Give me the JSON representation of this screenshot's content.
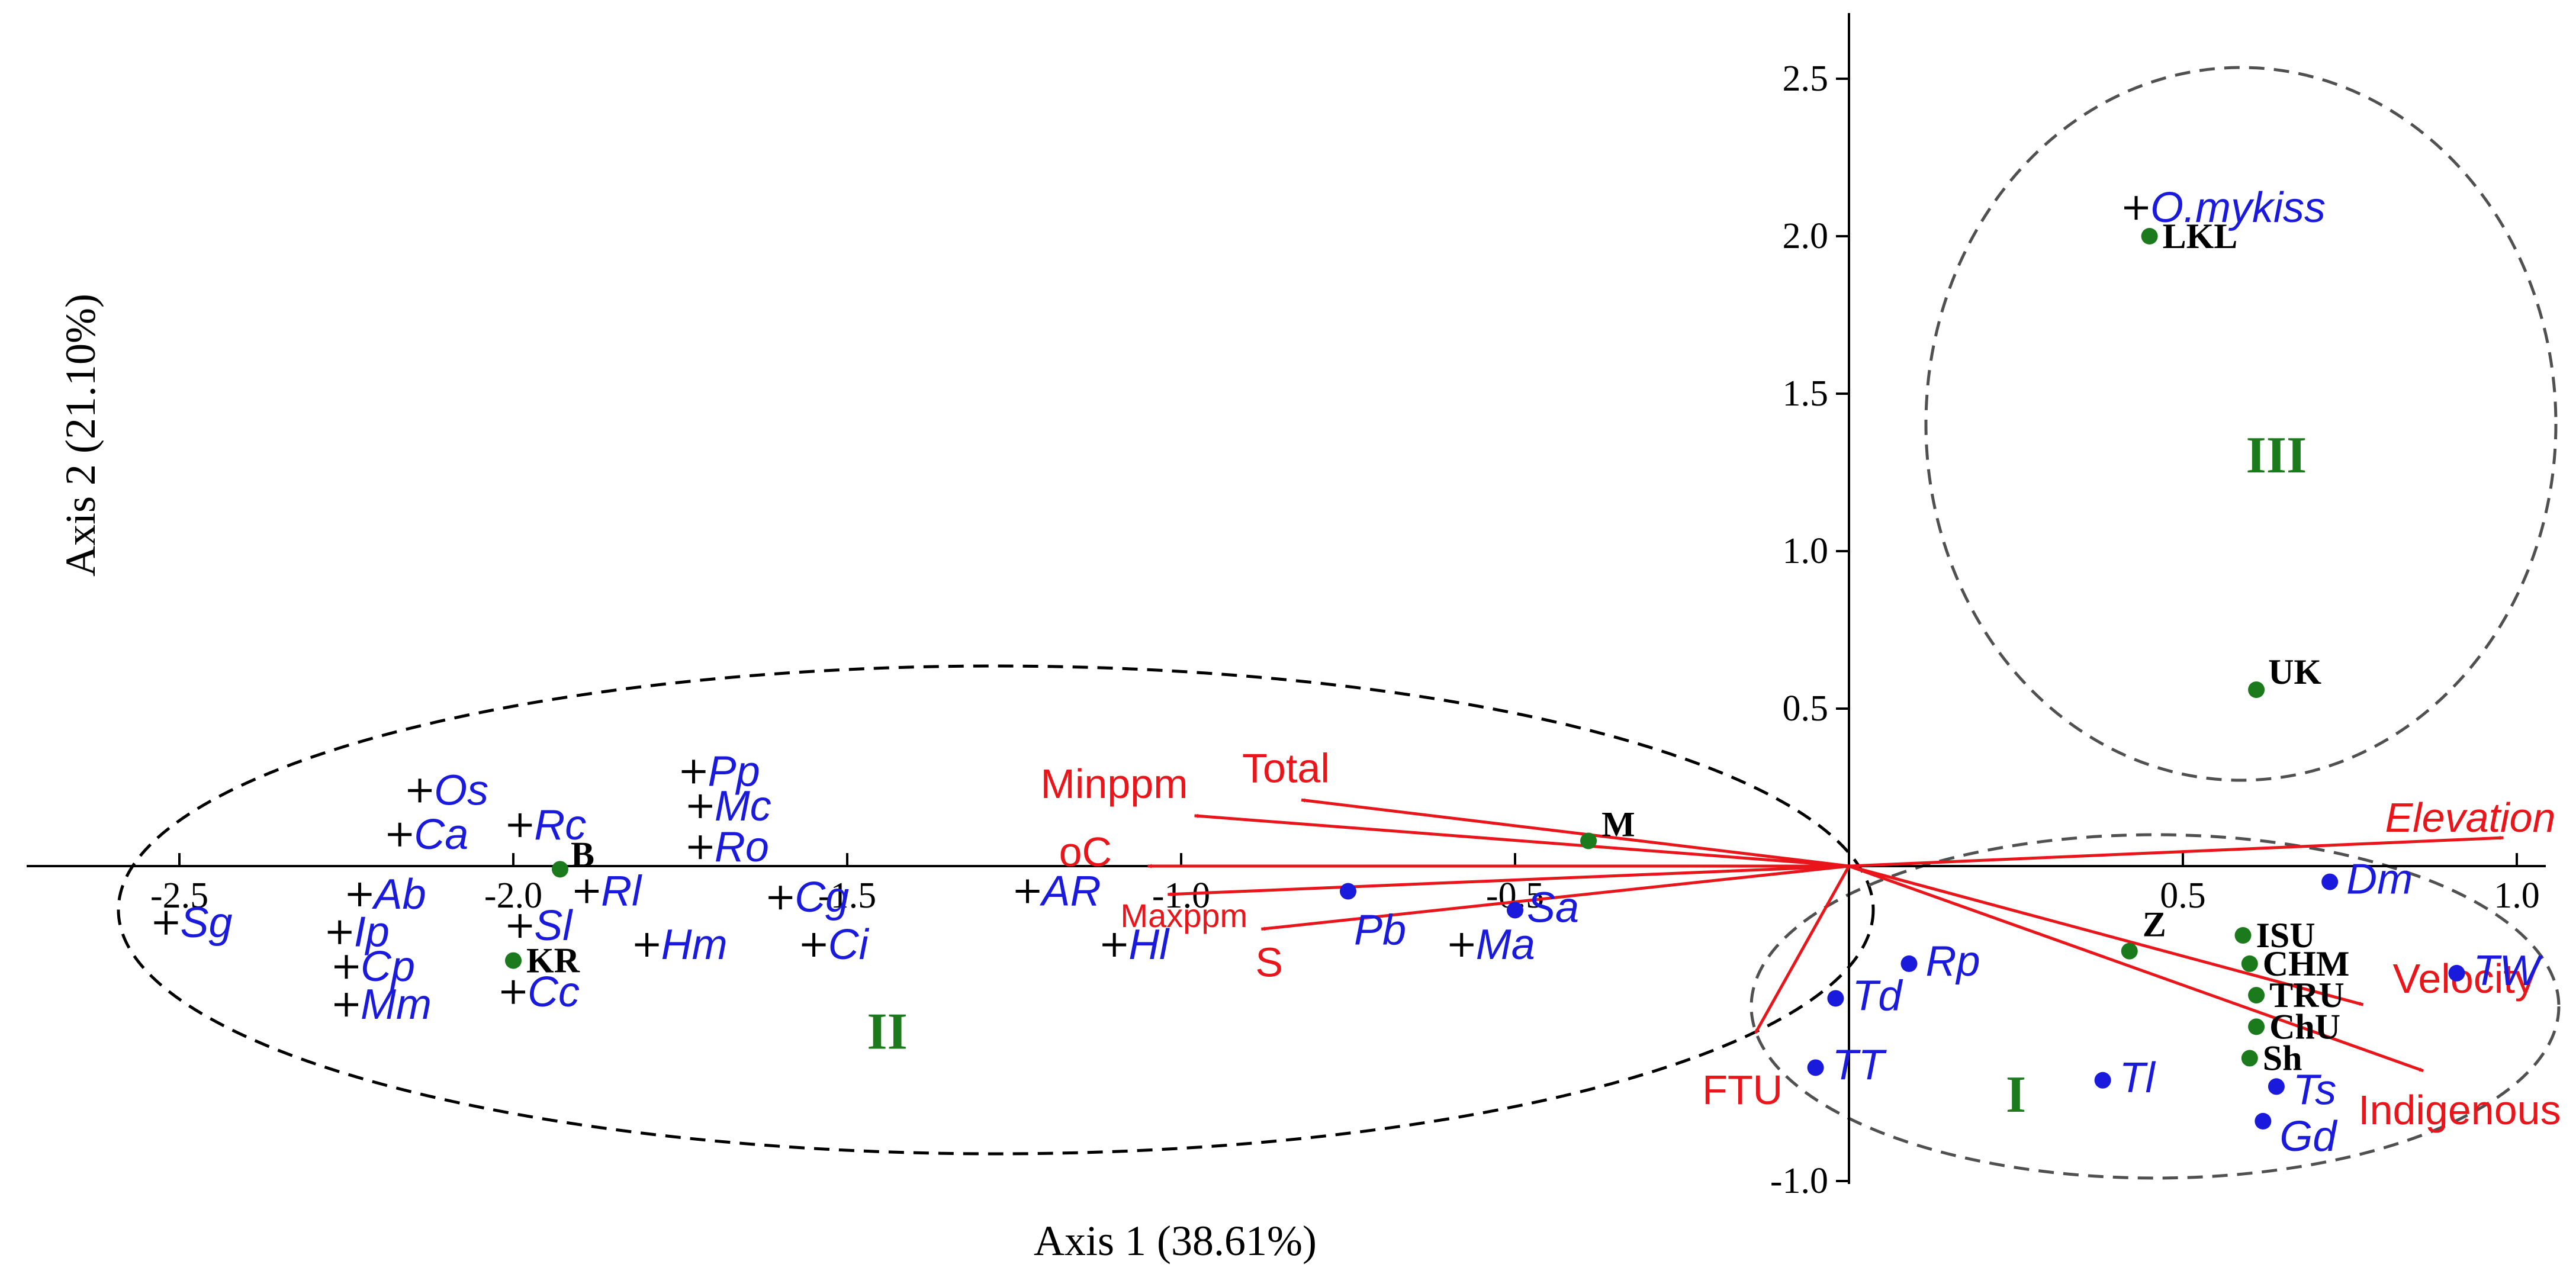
{
  "chart_data": {
    "type": "scatter",
    "subtype": "ordination biplot",
    "xlabel": "Axis 1 (38.61%)",
    "ylabel": "Axis 2 (21.10%)",
    "xlim": [
      -2.6,
      1.0
    ],
    "ylim": [
      -1.0,
      2.6
    ],
    "x_ticks": [
      "-2.5",
      "-2.0",
      "-1.5",
      "-1.0",
      "-0.5",
      "0.5",
      "1.0"
    ],
    "x_tick_values": [
      -2.5,
      -2.0,
      -1.5,
      -1.0,
      -0.5,
      0.5,
      1.0
    ],
    "y_ticks": [
      "2.5",
      "2.0",
      "1.5",
      "1.0",
      "0.5",
      "-1.0"
    ],
    "y_tick_values": [
      2.5,
      2.0,
      1.5,
      1.0,
      0.5,
      -1.0
    ],
    "grid": false,
    "colors": {
      "species_nonnative": "#1a1adc",
      "species_native": "#1a1adc",
      "sites": "#1b7a1b",
      "vectors": "#e8151b",
      "groups": "#1b7a1b",
      "ellipse": "#000000",
      "circle": "#505050"
    },
    "species_cross": [
      {
        "label": "Sg",
        "x": -2.52,
        "y": -0.18
      },
      {
        "label": "Ab",
        "x": -2.23,
        "y": -0.09
      },
      {
        "label": "Ip",
        "x": -2.26,
        "y": -0.21
      },
      {
        "label": "Cp",
        "x": -2.25,
        "y": -0.32
      },
      {
        "label": "Mm",
        "x": -2.25,
        "y": -0.44
      },
      {
        "label": "Os",
        "x": -2.14,
        "y": 0.24
      },
      {
        "label": "Ca",
        "x": -2.17,
        "y": 0.1
      },
      {
        "label": "Rc",
        "x": -1.99,
        "y": 0.13
      },
      {
        "label": "Sl",
        "x": -1.99,
        "y": -0.19
      },
      {
        "label": "Cc",
        "x": -2.0,
        "y": -0.4
      },
      {
        "label": "Rl",
        "x": -1.89,
        "y": -0.08
      },
      {
        "label": "Pp",
        "x": -1.73,
        "y": 0.3
      },
      {
        "label": "Mc",
        "x": -1.72,
        "y": 0.19
      },
      {
        "label": "Ro",
        "x": -1.72,
        "y": 0.06
      },
      {
        "label": "Hm",
        "x": -1.8,
        "y": -0.25
      },
      {
        "label": "Cg",
        "x": -1.6,
        "y": -0.1
      },
      {
        "label": "Ci",
        "x": -1.55,
        "y": -0.25
      },
      {
        "label": "AR",
        "x": -1.23,
        "y": -0.08
      },
      {
        "label": "Hl",
        "x": -1.1,
        "y": -0.25
      },
      {
        "label": "Ma",
        "x": -0.58,
        "y": -0.25
      },
      {
        "label": "O.mykiss",
        "x": 0.43,
        "y": 2.09
      }
    ],
    "species_dot": [
      {
        "label": "Pb",
        "x": -0.75,
        "y": -0.08
      },
      {
        "label": "Sa",
        "x": -0.5,
        "y": -0.14
      },
      {
        "label": "Dm",
        "x": 0.72,
        "y": -0.05
      },
      {
        "label": "Rp",
        "x": 0.09,
        "y": -0.31
      },
      {
        "label": "Td",
        "x": -0.02,
        "y": -0.42
      },
      {
        "label": "TT",
        "x": -0.05,
        "y": -0.64
      },
      {
        "label": "Tl",
        "x": 0.38,
        "y": -0.68
      },
      {
        "label": "Ts",
        "x": 0.64,
        "y": -0.7
      },
      {
        "label": "Gd",
        "x": 0.62,
        "y": -0.81
      },
      {
        "label": "TW",
        "x": 0.91,
        "y": -0.34
      }
    ],
    "sites": [
      {
        "label": "LKL",
        "x": 0.45,
        "y": 2.0
      },
      {
        "label": "UK",
        "x": 0.61,
        "y": 0.56
      },
      {
        "label": "M",
        "x": -0.39,
        "y": 0.08
      },
      {
        "label": "B",
        "x": -1.93,
        "y": -0.01
      },
      {
        "label": "KR",
        "x": -2.0,
        "y": -0.3
      },
      {
        "label": "Z",
        "x": 0.42,
        "y": -0.27
      },
      {
        "label": "ISU",
        "x": 0.59,
        "y": -0.22
      },
      {
        "label": "CHM",
        "x": 0.6,
        "y": -0.31
      },
      {
        "label": "TRU",
        "x": 0.61,
        "y": -0.41
      },
      {
        "label": "ChU",
        "x": 0.61,
        "y": -0.51
      },
      {
        "label": "Sh",
        "x": 0.6,
        "y": -0.61
      }
    ],
    "vectors": [
      {
        "label": "Elevation",
        "x": 0.98,
        "y": 0.09,
        "italic": true
      },
      {
        "label": "Velocity",
        "x": 0.77,
        "y": -0.44
      },
      {
        "label": "Indigenous",
        "x": 0.86,
        "y": -0.65
      },
      {
        "label": "Total",
        "x": -0.82,
        "y": 0.21
      },
      {
        "label": "Minppm",
        "x": -0.98,
        "y": 0.16
      },
      {
        "label": "oC",
        "x": -1.05,
        "y": 0.0
      },
      {
        "label": "Maxppm",
        "x": -1.02,
        "y": -0.09
      },
      {
        "label": "S",
        "x": -0.88,
        "y": -0.2
      },
      {
        "label": "FTU",
        "x": -0.14,
        "y": -0.53
      }
    ],
    "groups": [
      {
        "label": "I",
        "x": 0.25,
        "y": -0.78
      },
      {
        "label": "II",
        "x": -1.44,
        "y": -0.58
      },
      {
        "label": "III",
        "x": 0.64,
        "y": 1.25
      }
    ],
    "group_outlines": [
      {
        "label": "II",
        "shape": "ellipse",
        "style": "dashed"
      },
      {
        "label": "III",
        "shape": "circle",
        "style": "dashed"
      },
      {
        "label": "I",
        "shape": "ellipse",
        "style": "dashed"
      }
    ]
  }
}
